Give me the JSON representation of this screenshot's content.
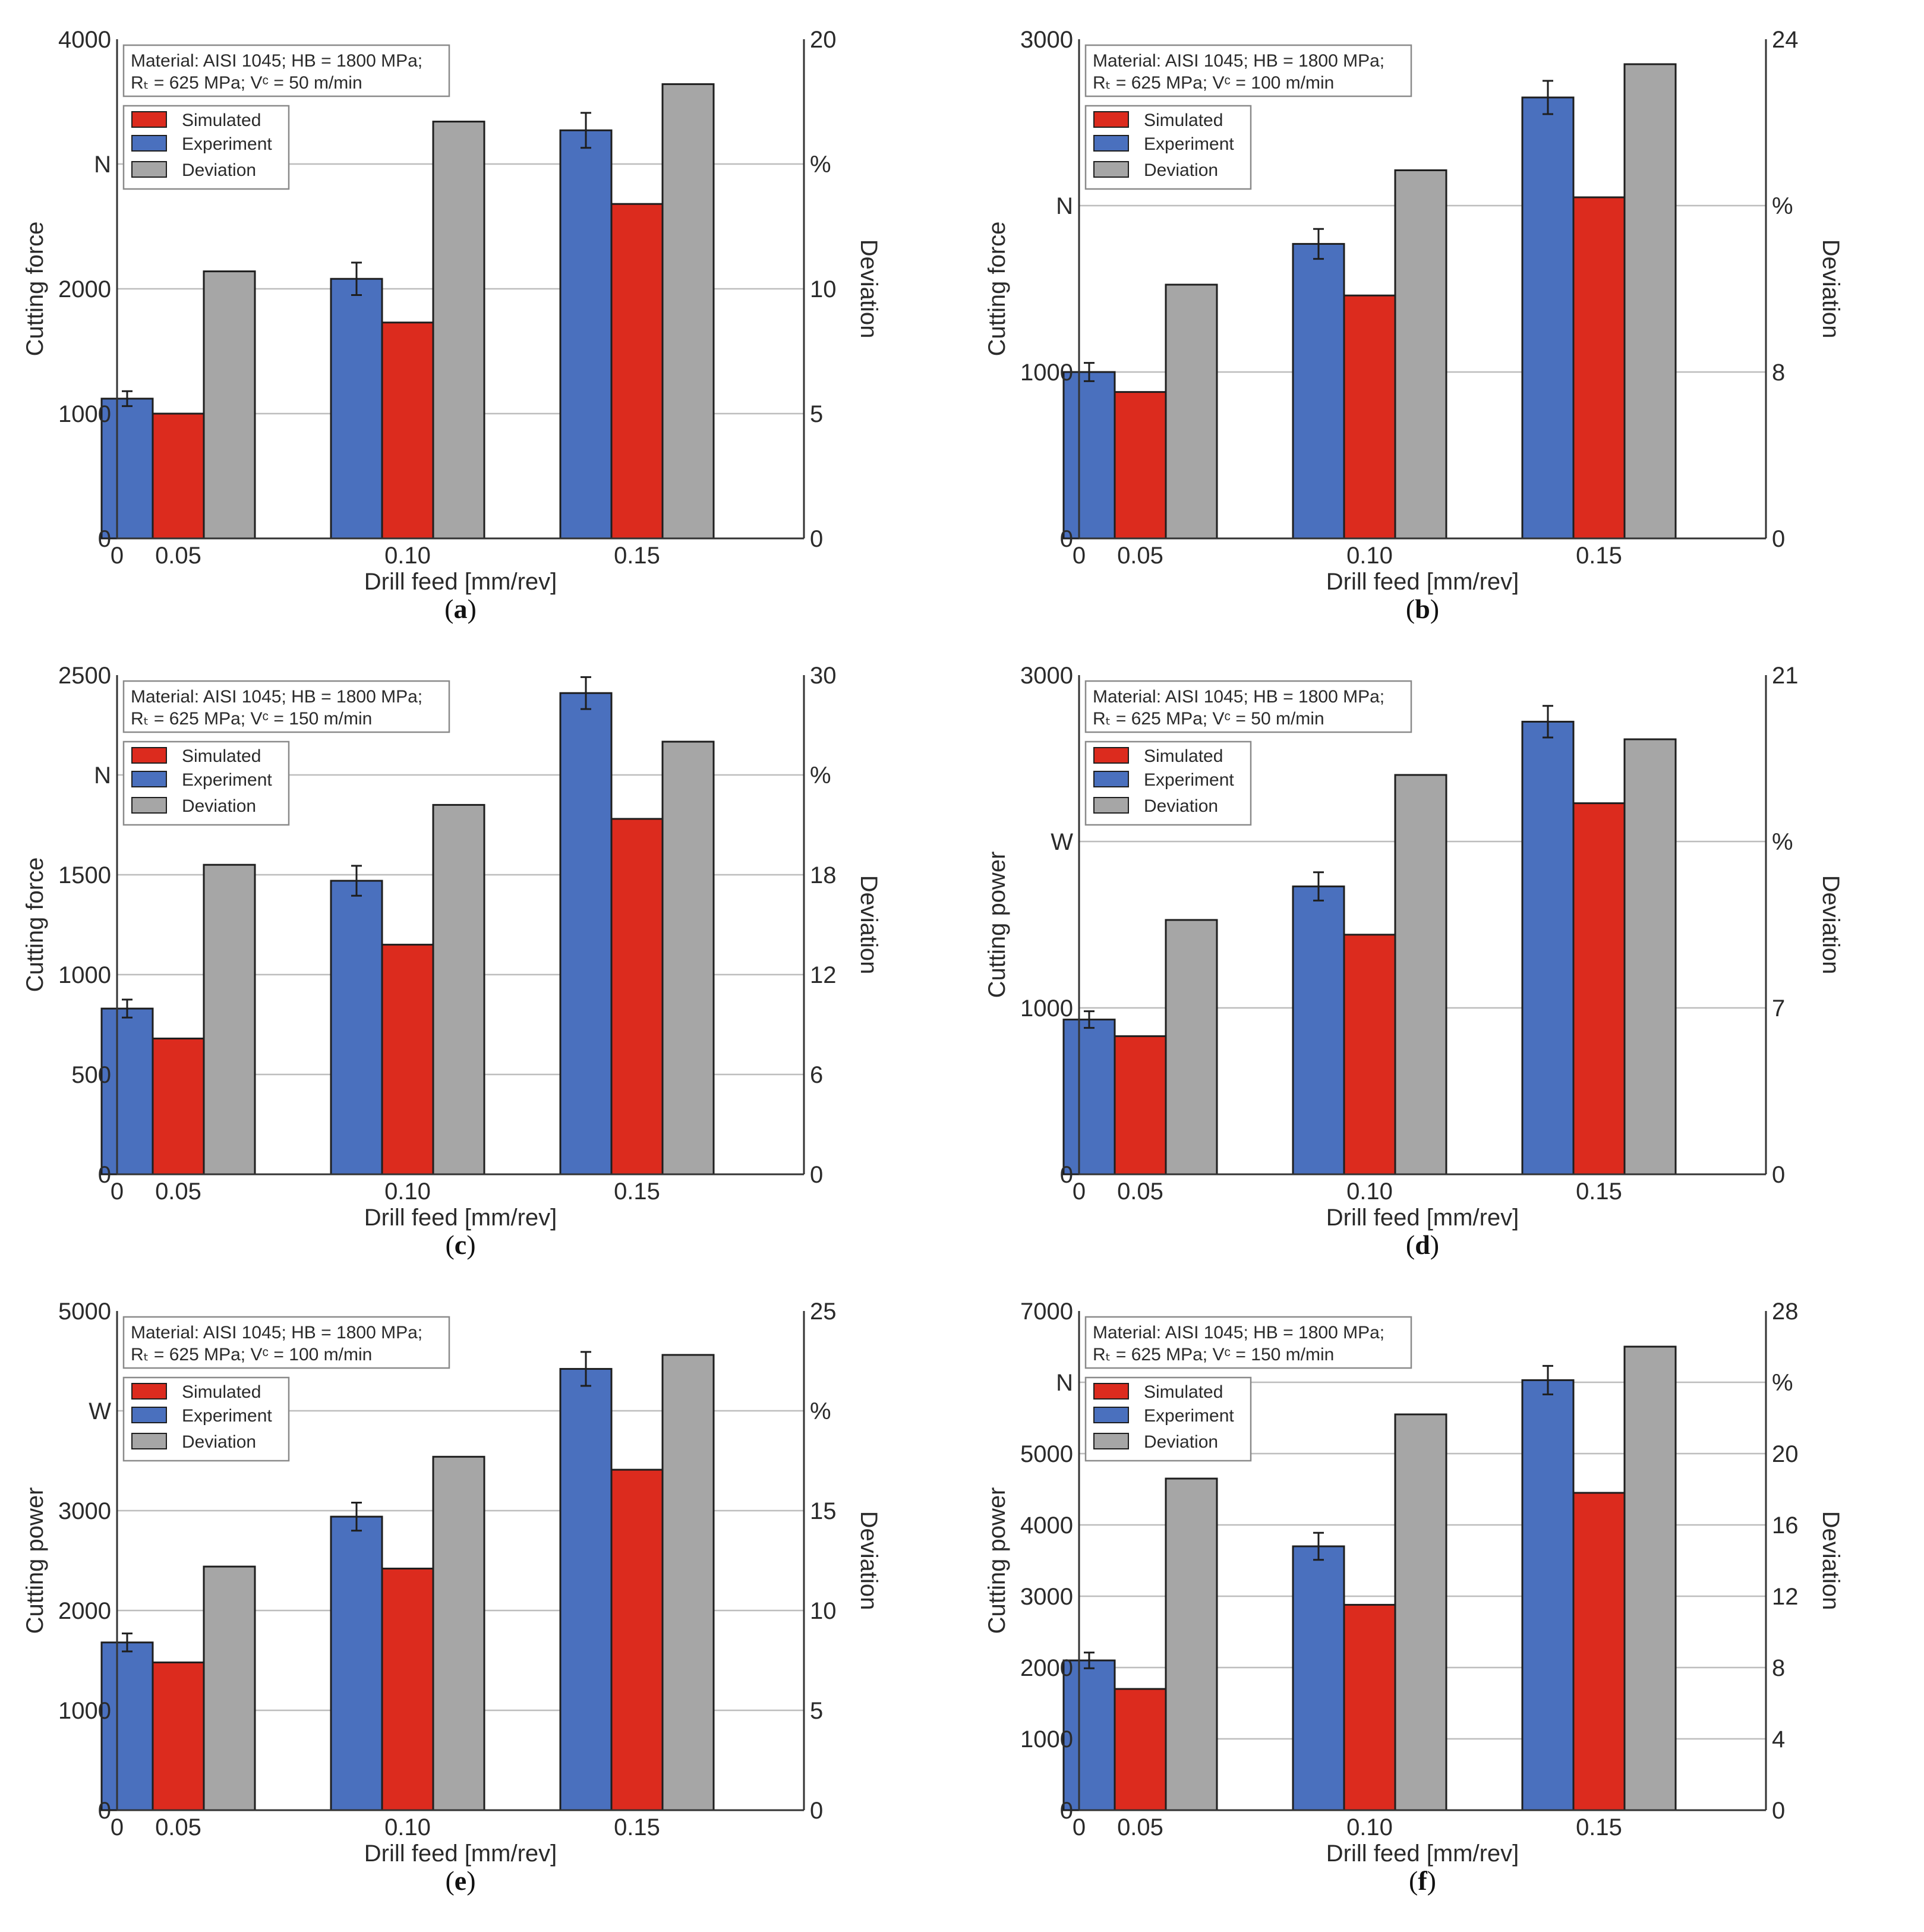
{
  "legend_labels": {
    "simulated": "Simulated",
    "experiment": "Experiment",
    "deviation": "Deviation"
  },
  "series_colors": {
    "simulated": "#dc2b1e",
    "experiment": "#4a70be",
    "deviation": "#a6a6a6"
  },
  "chart_data": [
    {
      "type": "bar",
      "panel_label": "a",
      "info_line1": "Material: AISI 1045; HB = 1800 MPa;",
      "info_line2": "Rₜ = 625 MPa; Vᶜ = 50 m/min",
      "xlabel": "Drill feed [mm/rev]",
      "ylabel": "Cutting force",
      "y2label": "Deviation",
      "unit_left": "N",
      "unit_right": "%",
      "categories": [
        "0.05",
        "0.10",
        "0.15"
      ],
      "ylim": [
        0,
        4000
      ],
      "y2lim": [
        0,
        20
      ],
      "yticks": [
        "0",
        "1000",
        "2000",
        "N",
        "4000"
      ],
      "y2ticks": [
        "0",
        "5",
        "10",
        "%",
        "20"
      ],
      "series": [
        {
          "name": "Experiment",
          "values": [
            1120,
            2080,
            3270
          ],
          "errors": [
            60,
            130,
            140
          ]
        },
        {
          "name": "Simulated",
          "values": [
            1000,
            1730,
            2680
          ]
        },
        {
          "name": "Deviation",
          "values": [
            10.7,
            16.7,
            18.2
          ],
          "axis": "right"
        }
      ]
    },
    {
      "type": "bar",
      "panel_label": "b",
      "info_line1": "Material: AISI 1045; HB = 1800 MPa;",
      "info_line2": "Rₜ = 625 MPa; Vᶜ = 100 m/min",
      "xlabel": "Drill feed [mm/rev]",
      "ylabel": "Cutting force",
      "y2label": "Deviation",
      "unit_left": "N",
      "unit_right": "%",
      "categories": [
        "0.05",
        "0.10",
        "0.15"
      ],
      "ylim": [
        0,
        3000
      ],
      "y2lim": [
        0,
        24
      ],
      "yticks": [
        "0",
        "1000",
        "N",
        "3000"
      ],
      "y2ticks": [
        "0",
        "8",
        "%",
        "24"
      ],
      "series": [
        {
          "name": "Experiment",
          "values": [
            1000,
            1770,
            2650
          ],
          "errors": [
            55,
            90,
            100
          ]
        },
        {
          "name": "Simulated",
          "values": [
            880,
            1460,
            2050
          ]
        },
        {
          "name": "Deviation",
          "values": [
            12.2,
            17.7,
            22.8
          ],
          "axis": "right"
        }
      ]
    },
    {
      "type": "bar",
      "panel_label": "c",
      "info_line1": "Material: AISI 1045; HB = 1800 MPa;",
      "info_line2": "Rₜ = 625 MPa; Vᶜ = 150 m/min",
      "xlabel": "Drill feed [mm/rev]",
      "ylabel": "Cutting force",
      "y2label": "Deviation",
      "unit_left": "N",
      "unit_right": "%",
      "categories": [
        "0.05",
        "0.10",
        "0.15"
      ],
      "ylim": [
        0,
        2500
      ],
      "y2lim": [
        0,
        30
      ],
      "yticks": [
        "0",
        "500",
        "1000",
        "1500",
        "N",
        "2500"
      ],
      "y2ticks": [
        "0",
        "6",
        "12",
        "18",
        "%",
        "30"
      ],
      "series": [
        {
          "name": "Experiment",
          "values": [
            830,
            1470,
            2410
          ],
          "errors": [
            45,
            75,
            80
          ]
        },
        {
          "name": "Simulated",
          "values": [
            680,
            1150,
            1780
          ]
        },
        {
          "name": "Deviation",
          "values": [
            18.6,
            22.2,
            26.0
          ],
          "axis": "right"
        }
      ]
    },
    {
      "type": "bar",
      "panel_label": "d",
      "info_line1": "Material: AISI 1045; HB = 1800 MPa;",
      "info_line2": "Rₜ = 625 MPa; Vᶜ = 50 m/min",
      "xlabel": "Drill feed [mm/rev]",
      "ylabel": "Cutting power",
      "y2label": "Deviation",
      "unit_left": "W",
      "unit_right": "%",
      "categories": [
        "0.05",
        "0.10",
        "0.15"
      ],
      "ylim": [
        0,
        3000
      ],
      "y2lim": [
        0,
        21
      ],
      "yticks": [
        "0",
        "1000",
        "W",
        "3000"
      ],
      "y2ticks": [
        "0",
        "7",
        "%",
        "21"
      ],
      "series": [
        {
          "name": "Experiment",
          "values": [
            930,
            1730,
            2720
          ],
          "errors": [
            50,
            85,
            95
          ]
        },
        {
          "name": "Simulated",
          "values": [
            830,
            1440,
            2230
          ]
        },
        {
          "name": "Deviation",
          "values": [
            10.7,
            16.8,
            18.3
          ],
          "axis": "right"
        }
      ]
    },
    {
      "type": "bar",
      "panel_label": "e",
      "info_line1": "Material: AISI 1045; HB = 1800 MPa;",
      "info_line2": "Rₜ = 625 MPa; Vᶜ = 100 m/min",
      "xlabel": "Drill feed [mm/rev]",
      "ylabel": "Cutting power",
      "y2label": "Deviation",
      "unit_left": "W",
      "unit_right": "%",
      "categories": [
        "0.05",
        "0.10",
        "0.15"
      ],
      "ylim": [
        0,
        5000
      ],
      "y2lim": [
        0,
        25
      ],
      "yticks": [
        "0",
        "1000",
        "2000",
        "3000",
        "W",
        "5000"
      ],
      "y2ticks": [
        "0",
        "5",
        "10",
        "15",
        "%",
        "25"
      ],
      "series": [
        {
          "name": "Experiment",
          "values": [
            1680,
            2940,
            4420
          ],
          "errors": [
            90,
            140,
            170
          ]
        },
        {
          "name": "Simulated",
          "values": [
            1480,
            2420,
            3410
          ]
        },
        {
          "name": "Deviation",
          "values": [
            12.2,
            17.7,
            22.8
          ],
          "axis": "right"
        }
      ]
    },
    {
      "type": "bar",
      "panel_label": "f",
      "info_line1": "Material: AISI 1045; HB = 1800 MPa;",
      "info_line2": "Rₜ = 625 MPa; Vᶜ = 150 m/min",
      "xlabel": "Drill feed [mm/rev]",
      "ylabel": "Cutting power",
      "y2label": "Deviation",
      "unit_left": "N",
      "unit_right": "%",
      "categories": [
        "0.05",
        "0.10",
        "0.15"
      ],
      "ylim": [
        0,
        7000
      ],
      "y2lim": [
        0,
        28
      ],
      "yticks": [
        "0",
        "1000",
        "2000",
        "3000",
        "4000",
        "5000",
        "N",
        "7000"
      ],
      "y2ticks": [
        "0",
        "4",
        "8",
        "12",
        "16",
        "20",
        "%",
        "28"
      ],
      "series": [
        {
          "name": "Experiment",
          "values": [
            2100,
            3700,
            6030
          ],
          "errors": [
            110,
            190,
            200
          ]
        },
        {
          "name": "Simulated",
          "values": [
            1700,
            2880,
            4450
          ]
        },
        {
          "name": "Deviation",
          "values": [
            18.6,
            22.2,
            26.0
          ],
          "axis": "right"
        }
      ]
    }
  ]
}
